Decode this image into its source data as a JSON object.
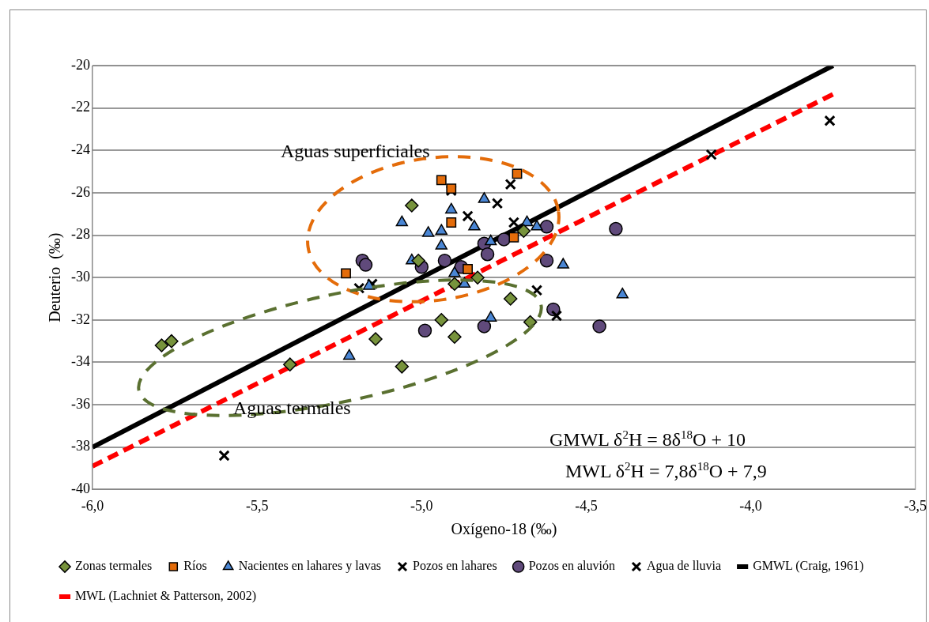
{
  "chart_data": {
    "type": "scatter",
    "xlabel": "Oxígeno-18 (‰)",
    "ylabel": "Deuterio  (‰)",
    "xlim": [
      -6,
      -3.5
    ],
    "xticks": [
      {
        "value": -6,
        "label": "-6,0"
      },
      {
        "value": -5.5,
        "label": "-5,5"
      },
      {
        "value": -5,
        "label": "-5,0"
      },
      {
        "value": -4.5,
        "label": "-4,5"
      },
      {
        "value": -4,
        "label": "-4,0"
      },
      {
        "value": -3.5,
        "label": "-3,5"
      }
    ],
    "ylim": [
      -40,
      -20
    ],
    "yticks": [
      -40,
      -38,
      -36,
      -34,
      -32,
      -30,
      -28,
      -26,
      -24,
      -22,
      -20
    ],
    "grid": "y",
    "legend": "bottom",
    "series": [
      {
        "name": "Zonas termales",
        "color": "#77933c",
        "marker": "diamond",
        "x": [
          -5.79,
          -5.76,
          -5.4,
          -5.03,
          -5.01,
          -5.14,
          -5.06,
          -4.94,
          -4.9,
          -4.73,
          -4.67,
          -4.83,
          -4.69,
          -4.9
        ],
        "values": [
          -33.2,
          -33,
          -34.1,
          -26.6,
          -29.2,
          -32.9,
          -34.2,
          -32,
          -32.8,
          -31,
          -32.1,
          -30,
          -27.8,
          -30.3
        ]
      },
      {
        "name": "Ríos",
        "color": "#e46c0a",
        "marker": "square",
        "x": [
          -5.23,
          -4.94,
          -4.91,
          -4.71,
          -4.91,
          -4.72,
          -4.86
        ],
        "values": [
          -29.8,
          -25.4,
          -25.8,
          -25.1,
          -27.4,
          -28.1,
          -29.6
        ]
      },
      {
        "name": "Nacientes en lahares y lavas",
        "color": "#4a86d4",
        "marker": "triangle",
        "x": [
          -5.06,
          -5.22,
          -4.98,
          -4.94,
          -4.94,
          -4.91,
          -4.81,
          -4.84,
          -4.79,
          -4.68,
          -4.65,
          -5.03,
          -4.9,
          -4.87,
          -5.16,
          -4.79,
          -4.57,
          -4.39
        ],
        "values": [
          -27.4,
          -33.7,
          -27.9,
          -27.8,
          -28.5,
          -26.8,
          -26.3,
          -27.6,
          -28.3,
          -27.4,
          -27.6,
          -29.2,
          -29.8,
          -30.3,
          -30.4,
          -31.9,
          -29.4,
          -30.8
        ]
      },
      {
        "name": "Pozos en lahares",
        "color": "#000000",
        "marker": "cross",
        "x": [
          -4.91,
          -4.73,
          -4.77,
          -4.86,
          -4.72,
          -4.65,
          -4.59,
          -5.19,
          -5.15
        ],
        "values": [
          -25.9,
          -25.6,
          -26.5,
          -27.1,
          -27.4,
          -30.6,
          -31.8,
          -30.5,
          -30.3
        ]
      },
      {
        "name": "Pozos en aluvión",
        "color": "#604a7b",
        "marker": "circle",
        "x": [
          -5.18,
          -5.17,
          -5,
          -4.93,
          -4.88,
          -4.81,
          -4.8,
          -4.75,
          -4.62,
          -4.41,
          -4.62,
          -4.99,
          -4.81,
          -4.6,
          -4.46
        ],
        "values": [
          -29.2,
          -29.4,
          -29.5,
          -29.2,
          -29.5,
          -28.4,
          -28.9,
          -28.2,
          -27.6,
          -27.7,
          -29.2,
          -32.5,
          -32.3,
          -31.5,
          -32.3
        ]
      },
      {
        "name": "Agua de lluvia",
        "color": "#000000",
        "marker": "cross",
        "x": [
          -5.6,
          -4.12,
          -3.76
        ],
        "values": [
          -38.4,
          -24.2,
          -22.6
        ]
      },
      {
        "name": "GMWL (Craig, 1961)",
        "type": "line",
        "color": "#000000",
        "marker": "none",
        "line_style": "solid",
        "x": [
          -6,
          -3.75
        ],
        "values": [
          -38,
          -20
        ]
      },
      {
        "name": "MWL (Lachniet & Patterson, 2002)",
        "type": "line",
        "color": "#ff0000",
        "marker": "none",
        "line_style": "dashed",
        "x": [
          -6,
          -3.75
        ],
        "values": [
          -38.9,
          -21.35
        ]
      }
    ],
    "annotations": [
      "Aguas superficiales",
      "Aguas termales",
      "GMWL δ$^{2}$H = 8δ$^{18}$O + 10",
      "MWL  δ$^{2}$H = 7,8δ$^{18}$O + 7,9"
    ]
  }
}
